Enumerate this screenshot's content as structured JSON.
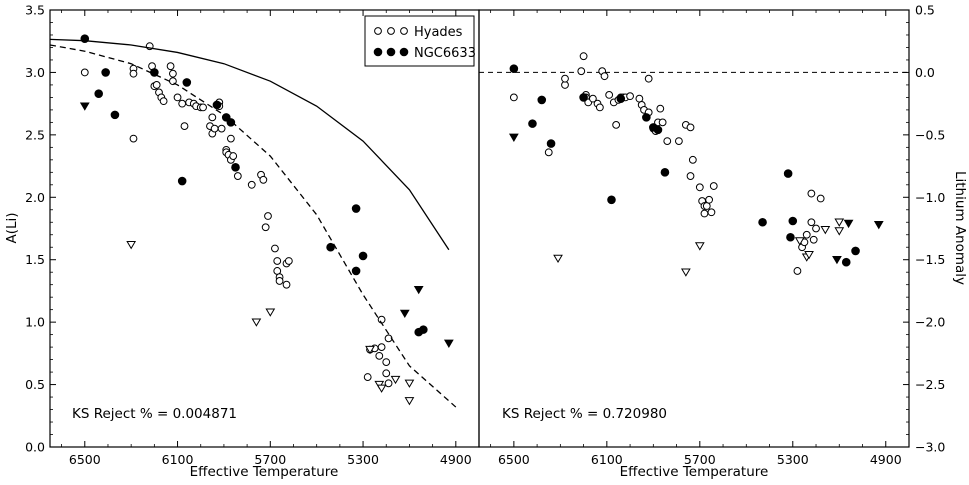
{
  "chart_data": [
    {
      "type": "scatter",
      "panel": "left",
      "xlabel": "Effective Temperature",
      "ylabel": "A(Li)",
      "xlim": [
        6650,
        4800
      ],
      "ylim": [
        0.0,
        3.5
      ],
      "xticks": [
        6500,
        6100,
        5700,
        5300,
        4900
      ],
      "yticks": [
        0.0,
        0.5,
        1.0,
        1.5,
        2.0,
        2.5,
        3.0,
        3.5
      ],
      "ytick_labels": [
        "0.0",
        "0.5",
        "1.0",
        "1.5",
        "2.0",
        "2.5",
        "3.0",
        "3.5"
      ],
      "annotation": "KS Reject % = 0.004871",
      "legend": {
        "position": "top-right",
        "entries": [
          {
            "label": "Hyades",
            "marker": "open-circle"
          },
          {
            "label": "NGC6633",
            "marker": "filled-circle"
          }
        ]
      },
      "series": [
        {
          "name": "Hyades",
          "marker": "open-circle",
          "points": [
            [
              6500,
              3.0
            ],
            [
              6290,
              2.47
            ],
            [
              6290,
              3.03
            ],
            [
              6290,
              2.99
            ],
            [
              6220,
              3.21
            ],
            [
              6210,
              3.05
            ],
            [
              6200,
              2.89
            ],
            [
              6190,
              2.9
            ],
            [
              6180,
              2.84
            ],
            [
              6170,
              2.8
            ],
            [
              6160,
              2.77
            ],
            [
              6130,
              3.05
            ],
            [
              6120,
              2.99
            ],
            [
              6120,
              2.93
            ],
            [
              6100,
              2.8
            ],
            [
              6080,
              2.75
            ],
            [
              6070,
              2.57
            ],
            [
              6050,
              2.76
            ],
            [
              6030,
              2.75
            ],
            [
              6020,
              2.73
            ],
            [
              6000,
              2.72
            ],
            [
              5990,
              2.72
            ],
            [
              5960,
              2.57
            ],
            [
              5950,
              2.51
            ],
            [
              5950,
              2.64
            ],
            [
              5940,
              2.55
            ],
            [
              5920,
              2.76
            ],
            [
              5920,
              2.73
            ],
            [
              5910,
              2.55
            ],
            [
              5890,
              2.38
            ],
            [
              5890,
              2.36
            ],
            [
              5880,
              2.34
            ],
            [
              5870,
              2.3
            ],
            [
              5870,
              2.47
            ],
            [
              5860,
              2.33
            ],
            [
              5840,
              2.17
            ],
            [
              5780,
              2.1
            ],
            [
              5740,
              2.18
            ],
            [
              5730,
              2.14
            ],
            [
              5720,
              1.76
            ],
            [
              5710,
              1.85
            ],
            [
              5680,
              1.59
            ],
            [
              5670,
              1.49
            ],
            [
              5670,
              1.41
            ],
            [
              5660,
              1.36
            ],
            [
              5660,
              1.33
            ],
            [
              5630,
              1.3
            ],
            [
              5630,
              1.47
            ],
            [
              5620,
              1.49
            ],
            [
              5280,
              0.56
            ],
            [
              5270,
              0.78
            ],
            [
              5250,
              0.79
            ],
            [
              5230,
              0.73
            ],
            [
              5220,
              1.02
            ],
            [
              5220,
              0.8
            ],
            [
              5200,
              0.59
            ],
            [
              5200,
              0.68
            ],
            [
              5190,
              0.87
            ],
            [
              5190,
              0.51
            ]
          ]
        },
        {
          "name": "NGC6633",
          "marker": "filled-circle",
          "points": [
            [
              6500,
              3.27
            ],
            [
              6440,
              2.83
            ],
            [
              6410,
              3.0
            ],
            [
              6370,
              2.66
            ],
            [
              6200,
              3.0
            ],
            [
              6080,
              2.13
            ],
            [
              6060,
              2.92
            ],
            [
              5930,
              2.74
            ],
            [
              5890,
              2.64
            ],
            [
              5870,
              2.6
            ],
            [
              5850,
              2.24
            ],
            [
              5440,
              1.6
            ],
            [
              5330,
              1.91
            ],
            [
              5330,
              1.41
            ],
            [
              5300,
              1.53
            ],
            [
              5060,
              0.92
            ],
            [
              5040,
              0.94
            ]
          ]
        },
        {
          "name": "Hyades upper limits",
          "marker": "open-triangle-down",
          "points": [
            [
              6300,
              1.62
            ],
            [
              5760,
              1.0
            ],
            [
              5700,
              1.08
            ],
            [
              5270,
              0.78
            ],
            [
              5230,
              0.5
            ],
            [
              5220,
              0.47
            ],
            [
              5160,
              0.54
            ],
            [
              5100,
              0.51
            ],
            [
              5100,
              0.37
            ]
          ]
        },
        {
          "name": "NGC6633 upper limits",
          "marker": "filled-triangle-down",
          "points": [
            [
              6500,
              2.73
            ],
            [
              5120,
              1.07
            ],
            [
              5060,
              1.26
            ],
            [
              4930,
              0.83
            ]
          ]
        },
        {
          "name": "solid curve",
          "marker": "line-solid",
          "points": [
            [
              6650,
              3.265
            ],
            [
              6500,
              3.254
            ],
            [
              6300,
              3.22
            ],
            [
              6100,
              3.16
            ],
            [
              5900,
              3.07
            ],
            [
              5700,
              2.93
            ],
            [
              5500,
              2.73
            ],
            [
              5300,
              2.45
            ],
            [
              5100,
              2.06
            ],
            [
              4930,
              1.58
            ]
          ]
        },
        {
          "name": "dashed curve",
          "marker": "line-dashed",
          "points": [
            [
              6650,
              3.22
            ],
            [
              6500,
              3.17
            ],
            [
              6300,
              3.07
            ],
            [
              6100,
              2.9
            ],
            [
              5900,
              2.66
            ],
            [
              5700,
              2.33
            ],
            [
              5500,
              1.86
            ],
            [
              5300,
              1.22
            ],
            [
              5100,
              0.65
            ],
            [
              4900,
              0.32
            ]
          ]
        }
      ]
    },
    {
      "type": "scatter",
      "panel": "right",
      "xlabel": "Effective Temperature",
      "ylabel": "Lithium Anomaly",
      "xlim": [
        6650,
        4800
      ],
      "ylim": [
        -3.0,
        0.5
      ],
      "xticks": [
        6500,
        6100,
        5700,
        5300,
        4900
      ],
      "yticks": [
        0.5,
        0.0,
        -0.5,
        -1.0,
        -1.5,
        -2.0,
        -2.5,
        -3.0
      ],
      "ytick_labels": [
        "0.5",
        "0.0",
        "−0.5",
        "−1.0",
        "−1.5",
        "−2.0",
        "−2.5",
        "−3.0"
      ],
      "annotation": "KS Reject % = 0.720980",
      "reference_line": {
        "y": 0.0,
        "style": "dashed"
      },
      "series": [
        {
          "name": "Hyades",
          "marker": "open-circle",
          "points": [
            [
              6500,
              -0.2
            ],
            [
              6350,
              -0.64
            ],
            [
              6280,
              -0.1
            ],
            [
              6280,
              -0.05
            ],
            [
              6210,
              0.01
            ],
            [
              6200,
              0.13
            ],
            [
              6190,
              -0.18
            ],
            [
              6190,
              -0.2
            ],
            [
              6180,
              -0.24
            ],
            [
              6160,
              -0.21
            ],
            [
              6140,
              -0.25
            ],
            [
              6130,
              -0.28
            ],
            [
              6120,
              0.01
            ],
            [
              6110,
              -0.03
            ],
            [
              6090,
              -0.18
            ],
            [
              6070,
              -0.24
            ],
            [
              6060,
              -0.42
            ],
            [
              6050,
              -0.22
            ],
            [
              6040,
              -0.2
            ],
            [
              6030,
              -0.2
            ],
            [
              6020,
              -0.2
            ],
            [
              6000,
              -0.19
            ],
            [
              5960,
              -0.21
            ],
            [
              5950,
              -0.26
            ],
            [
              5940,
              -0.3
            ],
            [
              5920,
              -0.05
            ],
            [
              5920,
              -0.32
            ],
            [
              5900,
              -0.45
            ],
            [
              5890,
              -0.47
            ],
            [
              5880,
              -0.4
            ],
            [
              5870,
              -0.29
            ],
            [
              5860,
              -0.4
            ],
            [
              5840,
              -0.55
            ],
            [
              5790,
              -0.55
            ],
            [
              5760,
              -0.42
            ],
            [
              5740,
              -0.44
            ],
            [
              5740,
              -0.83
            ],
            [
              5730,
              -0.7
            ],
            [
              5700,
              -0.92
            ],
            [
              5690,
              -1.03
            ],
            [
              5680,
              -1.07
            ],
            [
              5680,
              -1.13
            ],
            [
              5670,
              -1.07
            ],
            [
              5660,
              -1.02
            ],
            [
              5650,
              -1.12
            ],
            [
              5640,
              -0.91
            ],
            [
              5280,
              -1.59
            ],
            [
              5260,
              -1.4
            ],
            [
              5250,
              -1.36
            ],
            [
              5240,
              -1.3
            ],
            [
              5220,
              -1.2
            ],
            [
              5220,
              -0.97
            ],
            [
              5210,
              -1.34
            ],
            [
              5200,
              -1.25
            ],
            [
              5180,
              -1.01
            ]
          ]
        },
        {
          "name": "NGC6633",
          "marker": "filled-circle",
          "points": [
            [
              6500,
              0.03
            ],
            [
              6420,
              -0.41
            ],
            [
              6380,
              -0.22
            ],
            [
              6340,
              -0.57
            ],
            [
              6200,
              -0.2
            ],
            [
              6080,
              -1.02
            ],
            [
              6040,
              -0.21
            ],
            [
              5930,
              -0.36
            ],
            [
              5900,
              -0.44
            ],
            [
              5880,
              -0.46
            ],
            [
              5850,
              -0.8
            ],
            [
              5430,
              -1.2
            ],
            [
              5320,
              -0.81
            ],
            [
              5310,
              -1.32
            ],
            [
              5300,
              -1.19
            ],
            [
              5070,
              -1.52
            ],
            [
              5030,
              -1.43
            ]
          ]
        },
        {
          "name": "Hyades upper limits",
          "marker": "open-triangle-down",
          "points": [
            [
              6310,
              -1.49
            ],
            [
              5760,
              -1.6
            ],
            [
              5700,
              -1.39
            ],
            [
              5270,
              -1.35
            ],
            [
              5240,
              -1.48
            ],
            [
              5230,
              -1.46
            ],
            [
              5160,
              -1.26
            ],
            [
              5100,
              -1.27
            ],
            [
              5100,
              -1.2
            ]
          ]
        },
        {
          "name": "NGC6633 upper limits",
          "marker": "filled-triangle-down",
          "points": [
            [
              6500,
              -0.52
            ],
            [
              5110,
              -1.5
            ],
            [
              5060,
              -1.21
            ],
            [
              4930,
              -1.22
            ]
          ]
        }
      ]
    }
  ]
}
